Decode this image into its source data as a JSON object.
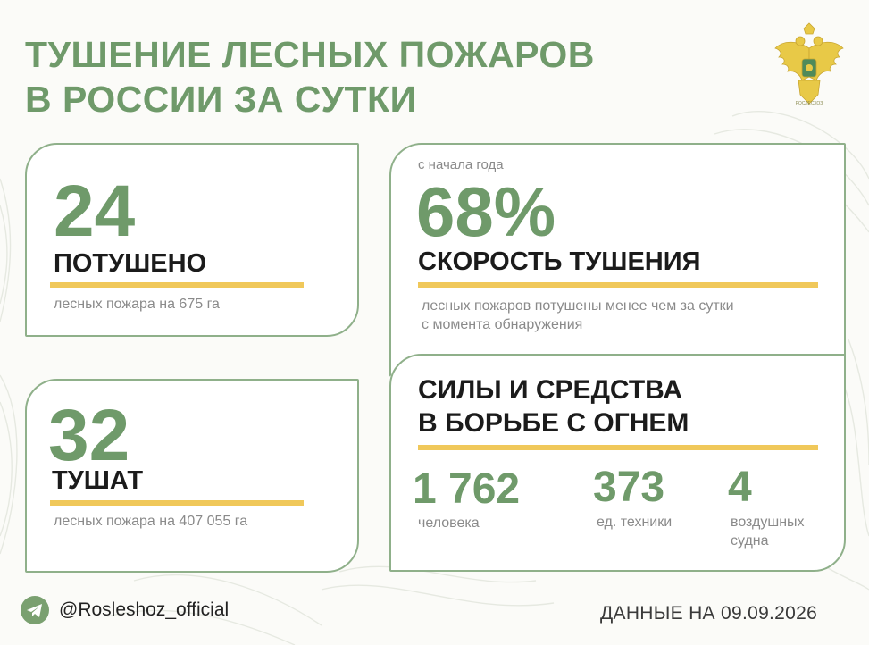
{
  "title": {
    "line1": "ТУШЕНИЕ ЛЕСНЫХ ПОЖАРОВ",
    "line2": "В РОССИИ ЗА СУТКИ"
  },
  "emblem": {
    "caption": "РОСЛЕСХОЗ",
    "icon": "double-headed-eagle-emblem"
  },
  "extinguished": {
    "number": "24",
    "label": "ПОТУШЕНО",
    "description": "лесных пожара на 675 га"
  },
  "extinguishing": {
    "number": "32",
    "label": "ТУШАТ",
    "description": "лесных пожара на 407 055 га"
  },
  "speed": {
    "caption": "с начала года",
    "percent": "68%",
    "label": "СКОРОСТЬ ТУШЕНИЯ",
    "description_line1": "лесных пожаров потушены менее чем за сутки",
    "description_line2": "с момента обнаружения"
  },
  "forces": {
    "heading_line1": "СИЛЫ И СРЕДСТВА",
    "heading_line2": "В БОРЬБЕ С ОГНЕМ",
    "people": {
      "value": "1 762",
      "unit": "человека"
    },
    "vehicles": {
      "value": "373",
      "unit": "ед. техники"
    },
    "aircraft": {
      "value": "4",
      "unit_line1": "воздушных",
      "unit_line2": "судна"
    }
  },
  "footer": {
    "telegram_icon": "telegram-icon",
    "handle": "@Rosleshoz_official",
    "date_text": "ДАННЫЕ НА 09.09.2026"
  },
  "colors": {
    "accent_green": "#6f9a6a",
    "border_green": "#8fb08a",
    "gold": "#f0c85a",
    "text_dark": "#1b1b1b",
    "text_muted": "#8a8a8a"
  }
}
